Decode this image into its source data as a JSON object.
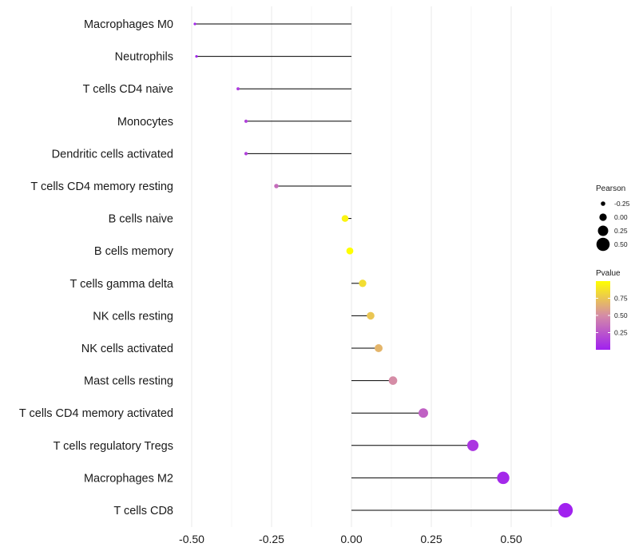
{
  "chart_data": {
    "type": "lollipop",
    "title": "",
    "xlabel": "",
    "ylabel": "",
    "xlim": [
      -0.5,
      0.67
    ],
    "xticks": [
      -0.5,
      -0.25,
      0.0,
      0.25,
      0.5
    ],
    "xtick_labels": [
      "-0.50",
      "-0.25",
      "0.00",
      "0.25",
      "0.50"
    ],
    "baseline": 0.0,
    "grid": true,
    "categories": [
      "Macrophages M0",
      "Neutrophils",
      "T cells CD4 naive",
      "Monocytes",
      "Dendritic cells activated",
      "T cells CD4 memory resting",
      "B cells naive",
      "B cells memory",
      "T cells gamma delta",
      "NK cells resting",
      "NK cells activated",
      "Mast cells resting",
      "T cells CD4 memory activated",
      "T cells regulatory  Tregs ",
      "Macrophages M2",
      "T cells CD8"
    ],
    "pearson": [
      -0.49,
      -0.485,
      -0.355,
      -0.33,
      -0.33,
      -0.235,
      -0.02,
      -0.005,
      0.035,
      0.06,
      0.085,
      0.13,
      0.225,
      0.38,
      0.475,
      0.67
    ],
    "pvalue": [
      0.03,
      0.03,
      0.12,
      0.15,
      0.15,
      0.35,
      0.95,
      1.0,
      0.85,
      0.75,
      0.68,
      0.5,
      0.3,
      0.1,
      0.04,
      0.01
    ],
    "size_legend": {
      "title": "Pearson",
      "values": [
        -0.25,
        0.0,
        0.25,
        0.5
      ],
      "labels": [
        "-0.25",
        "0.00",
        "0.25",
        "0.50"
      ]
    },
    "color_legend": {
      "title": "Pvalue",
      "ticks": [
        0.25,
        0.5,
        0.75
      ],
      "tick_labels": [
        "0.25",
        "0.50",
        "0.75"
      ],
      "range": [
        0.0,
        1.0
      ],
      "low_color": "#a020f0",
      "mid_color": "#d58ca6",
      "high_color": "#ffff00"
    },
    "line_color": "#000000",
    "grid_color": "#ebebeb"
  }
}
